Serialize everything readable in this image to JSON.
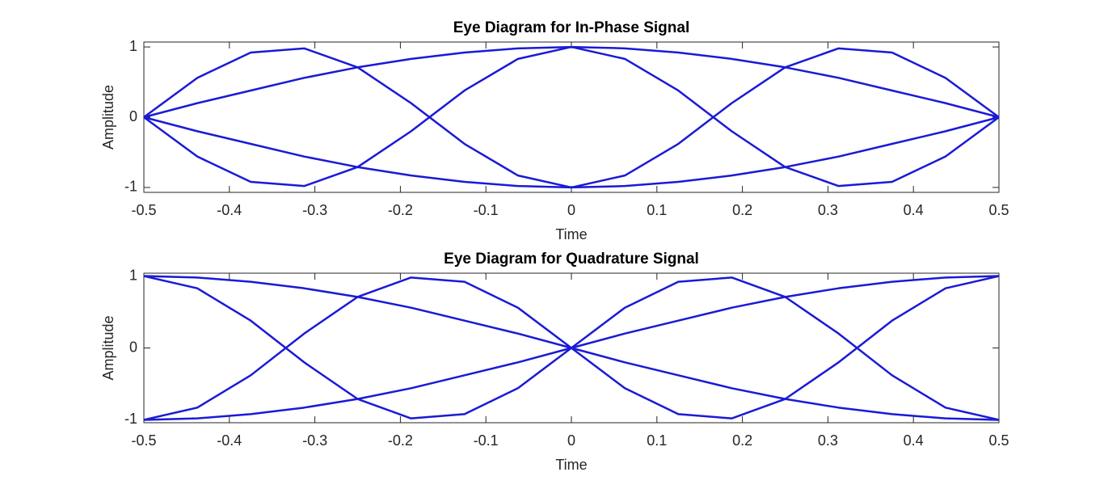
{
  "chart_data": [
    {
      "type": "line",
      "title": "Eye Diagram for In-Phase Signal",
      "xlabel": "Time",
      "ylabel": "Amplitude",
      "x": [
        -0.5,
        -0.4375,
        -0.375,
        -0.3125,
        -0.25,
        -0.1875,
        -0.125,
        -0.0625,
        0,
        0.0625,
        0.125,
        0.1875,
        0.25,
        0.3125,
        0.375,
        0.4375,
        0.5
      ],
      "series": [
        {
          "color": "#1a1ad6",
          "values": [
            0,
            0.56,
            0.92,
            0.98,
            0.71,
            0.2,
            -0.38,
            -0.83,
            -1,
            -0.83,
            -0.38,
            0.2,
            0.71,
            0.98,
            0.92,
            0.56,
            0
          ]
        },
        {
          "color": "#1a1ad6",
          "values": [
            0,
            -0.56,
            -0.92,
            -0.98,
            -0.71,
            -0.2,
            0.38,
            0.83,
            1,
            0.83,
            0.38,
            -0.2,
            -0.71,
            -0.98,
            -0.92,
            -0.56,
            0
          ]
        },
        {
          "color": "#1a1ad6",
          "values": [
            0,
            0.2,
            0.38,
            0.56,
            0.71,
            0.83,
            0.92,
            0.98,
            1,
            0.98,
            0.92,
            0.83,
            0.71,
            0.56,
            0.38,
            0.2,
            0
          ]
        },
        {
          "color": "#1a1ad6",
          "values": [
            0,
            -0.2,
            -0.38,
            -0.56,
            -0.71,
            -0.83,
            -0.92,
            -0.98,
            -1,
            -0.98,
            -0.92,
            -0.83,
            -0.71,
            -0.56,
            -0.38,
            -0.2,
            0
          ]
        }
      ],
      "xlim": [
        -0.5,
        0.5
      ],
      "xticks": [
        -0.5,
        -0.4,
        -0.3,
        -0.2,
        -0.1,
        0,
        0.1,
        0.2,
        0.3,
        0.4,
        0.5
      ],
      "ylim": [
        -1.07,
        1.07
      ],
      "yticks": [
        -1,
        0,
        1
      ]
    },
    {
      "type": "line",
      "title": "Eye Diagram for Quadrature Signal",
      "xlabel": "Time",
      "ylabel": "Amplitude",
      "x": [
        -0.5,
        -0.4375,
        -0.375,
        -0.3125,
        -0.25,
        -0.1875,
        -0.125,
        -0.0625,
        0,
        0.0625,
        0.125,
        0.1875,
        0.25,
        0.3125,
        0.375,
        0.4375,
        0.5
      ],
      "series": [
        {
          "color": "#1a1ad6",
          "values": [
            1,
            0.83,
            0.38,
            -0.2,
            -0.71,
            -0.98,
            -0.92,
            -0.56,
            0,
            0.56,
            0.92,
            0.98,
            0.71,
            0.2,
            -0.38,
            -0.83,
            -1
          ]
        },
        {
          "color": "#1a1ad6",
          "values": [
            -1,
            -0.83,
            -0.38,
            0.2,
            0.71,
            0.98,
            0.92,
            0.56,
            0,
            -0.56,
            -0.92,
            -0.98,
            -0.71,
            -0.2,
            0.38,
            0.83,
            1
          ]
        },
        {
          "color": "#1a1ad6",
          "values": [
            1,
            0.98,
            0.92,
            0.83,
            0.71,
            0.56,
            0.38,
            0.2,
            0,
            -0.2,
            -0.38,
            -0.56,
            -0.71,
            -0.83,
            -0.92,
            -0.98,
            -1
          ]
        },
        {
          "color": "#1a1ad6",
          "values": [
            -1,
            -0.98,
            -0.92,
            -0.83,
            -0.71,
            -0.56,
            -0.38,
            -0.2,
            0,
            0.2,
            0.38,
            0.56,
            0.71,
            0.83,
            0.92,
            0.98,
            1
          ]
        }
      ],
      "xlim": [
        -0.5,
        0.5
      ],
      "xticks": [
        -0.5,
        -0.4,
        -0.3,
        -0.2,
        -0.1,
        0,
        0.1,
        0.2,
        0.3,
        0.4,
        0.5
      ],
      "ylim": [
        -1.04,
        1.04
      ],
      "yticks": [
        -1,
        0,
        1
      ]
    }
  ]
}
